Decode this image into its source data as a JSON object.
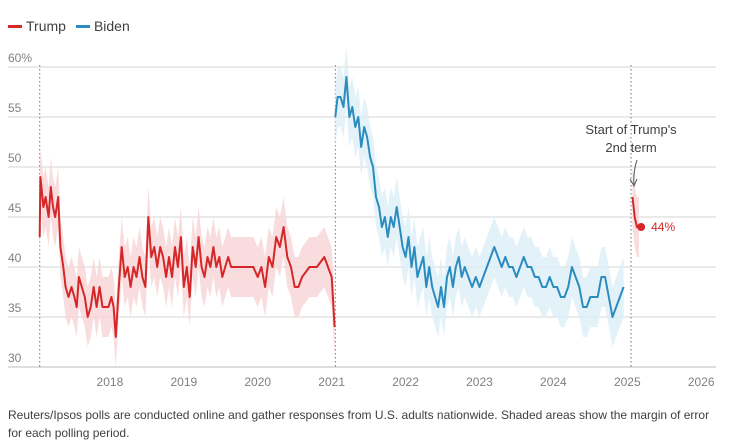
{
  "chart_data": {
    "type": "line",
    "xlabel": "",
    "ylabel": "",
    "x_ticks": [
      "2018",
      "2019",
      "2020",
      "2021",
      "2022",
      "2023",
      "2024",
      "2025",
      "2026"
    ],
    "xlim": [
      2017.0,
      2026.2
    ],
    "y_ticks": [
      "30",
      "35",
      "40",
      "45",
      "50",
      "55",
      "60%"
    ],
    "ylim": [
      30,
      60
    ],
    "grid": "horizontal",
    "legend_position": "top-left",
    "markers": [
      {
        "x": 2017.05,
        "label": ""
      },
      {
        "x": 2021.05,
        "label": ""
      },
      {
        "x": 2025.05,
        "label": ""
      }
    ],
    "series": [
      {
        "name": "Trump",
        "color": "#d62728",
        "band_color": "#f7d4d6",
        "margin": 3,
        "points": [
          [
            2017.05,
            43
          ],
          [
            2017.06,
            49
          ],
          [
            2017.1,
            46
          ],
          [
            2017.13,
            47
          ],
          [
            2017.17,
            45
          ],
          [
            2017.2,
            48
          ],
          [
            2017.23,
            46
          ],
          [
            2017.26,
            45
          ],
          [
            2017.3,
            47
          ],
          [
            2017.33,
            42
          ],
          [
            2017.37,
            40
          ],
          [
            2017.4,
            38
          ],
          [
            2017.44,
            37
          ],
          [
            2017.48,
            38
          ],
          [
            2017.52,
            37
          ],
          [
            2017.55,
            36
          ],
          [
            2017.58,
            39
          ],
          [
            2017.62,
            38
          ],
          [
            2017.66,
            37
          ],
          [
            2017.7,
            35
          ],
          [
            2017.74,
            36
          ],
          [
            2017.78,
            38
          ],
          [
            2017.82,
            36
          ],
          [
            2017.86,
            38
          ],
          [
            2017.9,
            36
          ],
          [
            2017.94,
            36
          ],
          [
            2017.98,
            36
          ],
          [
            2018.02,
            37
          ],
          [
            2018.05,
            36
          ],
          [
            2018.08,
            33
          ],
          [
            2018.12,
            38
          ],
          [
            2018.16,
            42
          ],
          [
            2018.2,
            39
          ],
          [
            2018.24,
            40
          ],
          [
            2018.28,
            38
          ],
          [
            2018.32,
            40
          ],
          [
            2018.36,
            39
          ],
          [
            2018.4,
            41
          ],
          [
            2018.44,
            39
          ],
          [
            2018.48,
            38
          ],
          [
            2018.52,
            45
          ],
          [
            2018.56,
            41
          ],
          [
            2018.6,
            42
          ],
          [
            2018.64,
            40
          ],
          [
            2018.68,
            42
          ],
          [
            2018.72,
            41
          ],
          [
            2018.76,
            39
          ],
          [
            2018.8,
            41
          ],
          [
            2018.84,
            39
          ],
          [
            2018.88,
            42
          ],
          [
            2018.92,
            40
          ],
          [
            2018.96,
            43
          ],
          [
            2019.0,
            38
          ],
          [
            2019.04,
            40
          ],
          [
            2019.08,
            37
          ],
          [
            2019.12,
            42
          ],
          [
            2019.16,
            40
          ],
          [
            2019.2,
            43
          ],
          [
            2019.24,
            40
          ],
          [
            2019.28,
            39
          ],
          [
            2019.32,
            41
          ],
          [
            2019.36,
            40
          ],
          [
            2019.4,
            42
          ],
          [
            2019.44,
            40
          ],
          [
            2019.48,
            41
          ],
          [
            2019.52,
            39
          ],
          [
            2019.56,
            40
          ],
          [
            2019.6,
            41
          ],
          [
            2019.64,
            40
          ],
          [
            2019.7,
            40
          ],
          [
            2019.76,
            40
          ],
          [
            2019.82,
            40
          ],
          [
            2019.88,
            40
          ],
          [
            2019.94,
            40
          ],
          [
            2020.0,
            39
          ],
          [
            2020.05,
            40
          ],
          [
            2020.1,
            38
          ],
          [
            2020.15,
            41
          ],
          [
            2020.2,
            40
          ],
          [
            2020.25,
            43
          ],
          [
            2020.3,
            42
          ],
          [
            2020.35,
            44
          ],
          [
            2020.4,
            41
          ],
          [
            2020.45,
            40
          ],
          [
            2020.5,
            38
          ],
          [
            2020.55,
            38
          ],
          [
            2020.6,
            39
          ],
          [
            2020.7,
            40
          ],
          [
            2020.8,
            40
          ],
          [
            2020.9,
            41
          ],
          [
            2020.95,
            40
          ],
          [
            2021.0,
            39
          ],
          [
            2021.04,
            34
          ]
        ]
      },
      {
        "name": "Biden",
        "color": "#2b8cbe",
        "band_color": "#dcedf8",
        "margin": 3,
        "points": [
          [
            2021.05,
            55
          ],
          [
            2021.08,
            57
          ],
          [
            2021.12,
            57
          ],
          [
            2021.16,
            56
          ],
          [
            2021.2,
            59
          ],
          [
            2021.24,
            55
          ],
          [
            2021.28,
            56
          ],
          [
            2021.32,
            54
          ],
          [
            2021.36,
            55
          ],
          [
            2021.4,
            52
          ],
          [
            2021.44,
            54
          ],
          [
            2021.48,
            53
          ],
          [
            2021.52,
            51
          ],
          [
            2021.56,
            50
          ],
          [
            2021.6,
            47
          ],
          [
            2021.64,
            46
          ],
          [
            2021.68,
            44
          ],
          [
            2021.72,
            45
          ],
          [
            2021.76,
            43
          ],
          [
            2021.8,
            45
          ],
          [
            2021.84,
            44
          ],
          [
            2021.88,
            46
          ],
          [
            2021.92,
            44
          ],
          [
            2021.96,
            42
          ],
          [
            2022.0,
            41
          ],
          [
            2022.04,
            43
          ],
          [
            2022.08,
            40
          ],
          [
            2022.12,
            42
          ],
          [
            2022.16,
            39
          ],
          [
            2022.2,
            40
          ],
          [
            2022.24,
            41
          ],
          [
            2022.28,
            38
          ],
          [
            2022.32,
            40
          ],
          [
            2022.36,
            38
          ],
          [
            2022.4,
            37
          ],
          [
            2022.44,
            36
          ],
          [
            2022.48,
            38
          ],
          [
            2022.52,
            36
          ],
          [
            2022.56,
            39
          ],
          [
            2022.6,
            40
          ],
          [
            2022.64,
            38
          ],
          [
            2022.68,
            40
          ],
          [
            2022.72,
            41
          ],
          [
            2022.76,
            39
          ],
          [
            2022.8,
            40
          ],
          [
            2022.85,
            39
          ],
          [
            2022.9,
            38
          ],
          [
            2022.95,
            39
          ],
          [
            2023.0,
            38
          ],
          [
            2023.05,
            39
          ],
          [
            2023.1,
            40
          ],
          [
            2023.15,
            41
          ],
          [
            2023.2,
            42
          ],
          [
            2023.25,
            41
          ],
          [
            2023.3,
            40
          ],
          [
            2023.35,
            41
          ],
          [
            2023.4,
            40
          ],
          [
            2023.45,
            40
          ],
          [
            2023.5,
            39
          ],
          [
            2023.55,
            40
          ],
          [
            2023.6,
            41
          ],
          [
            2023.65,
            40
          ],
          [
            2023.7,
            40
          ],
          [
            2023.75,
            39
          ],
          [
            2023.8,
            39
          ],
          [
            2023.85,
            38
          ],
          [
            2023.9,
            38
          ],
          [
            2023.95,
            39
          ],
          [
            2024.0,
            38
          ],
          [
            2024.05,
            38
          ],
          [
            2024.1,
            37
          ],
          [
            2024.15,
            37
          ],
          [
            2024.2,
            38
          ],
          [
            2024.25,
            40
          ],
          [
            2024.3,
            39
          ],
          [
            2024.35,
            38
          ],
          [
            2024.4,
            36
          ],
          [
            2024.45,
            36
          ],
          [
            2024.5,
            37
          ],
          [
            2024.55,
            37
          ],
          [
            2024.6,
            37
          ],
          [
            2024.65,
            39
          ],
          [
            2024.7,
            39
          ],
          [
            2024.75,
            37
          ],
          [
            2024.8,
            35
          ],
          [
            2024.85,
            36
          ],
          [
            2024.9,
            37
          ],
          [
            2024.95,
            38
          ]
        ]
      },
      {
        "name": "Trump",
        "color": "#d62728",
        "band_color": "#f7d4d6",
        "margin": 3,
        "points": [
          [
            2025.07,
            47
          ],
          [
            2025.1,
            45
          ],
          [
            2025.13,
            44
          ],
          [
            2025.16,
            44
          ]
        ]
      }
    ],
    "end_label": {
      "text": "44%",
      "x": 2025.16,
      "y": 44,
      "color": "#d62728"
    },
    "annotation": {
      "lines": [
        "Start of Trump's",
        "2nd term"
      ],
      "x": 2025.05,
      "y": 47
    }
  },
  "legend": [
    {
      "label": "Trump",
      "color": "#d62728"
    },
    {
      "label": "Biden",
      "color": "#2b8cbe"
    }
  ],
  "footnote": "Reuters/Ipsos polls are conducted online and gather responses from U.S. adults nationwide. Shaded areas show the margin of error for each polling period."
}
